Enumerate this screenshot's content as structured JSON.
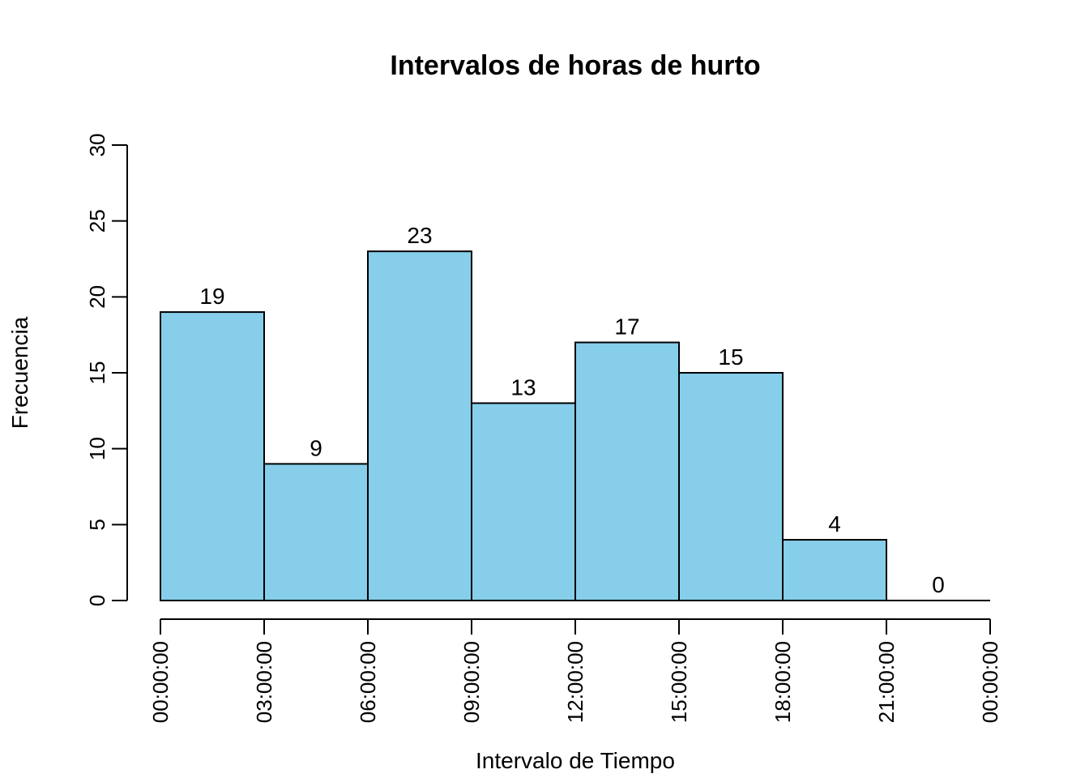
{
  "chart_data": {
    "type": "bar",
    "title": "Intervalos de horas de hurto",
    "xlabel": "Intervalo de Tiempo",
    "ylabel": "Frecuencia",
    "ylim": [
      0,
      30
    ],
    "y_ticks": [
      0,
      5,
      10,
      15,
      20,
      25,
      30
    ],
    "x_tick_labels": [
      "00:00:00",
      "03:00:00",
      "06:00:00",
      "09:00:00",
      "12:00:00",
      "15:00:00",
      "18:00:00",
      "21:00:00",
      "00:00:00"
    ],
    "bins": [
      {
        "from": "00:00:00",
        "to": "03:00:00",
        "value": 19
      },
      {
        "from": "03:00:00",
        "to": "06:00:00",
        "value": 9
      },
      {
        "from": "06:00:00",
        "to": "09:00:00",
        "value": 23
      },
      {
        "from": "09:00:00",
        "to": "12:00:00",
        "value": 13
      },
      {
        "from": "12:00:00",
        "to": "15:00:00",
        "value": 17
      },
      {
        "from": "15:00:00",
        "to": "18:00:00",
        "value": 15
      },
      {
        "from": "18:00:00",
        "to": "21:00:00",
        "value": 4
      },
      {
        "from": "21:00:00",
        "to": "00:00:00",
        "value": 0
      }
    ],
    "bar_labels": [
      "19",
      "9",
      "23",
      "13",
      "17",
      "15",
      "4",
      "0"
    ],
    "bar_color": "#87CEEB",
    "bar_border_color": "#000000",
    "grid": false,
    "legend": "none"
  }
}
